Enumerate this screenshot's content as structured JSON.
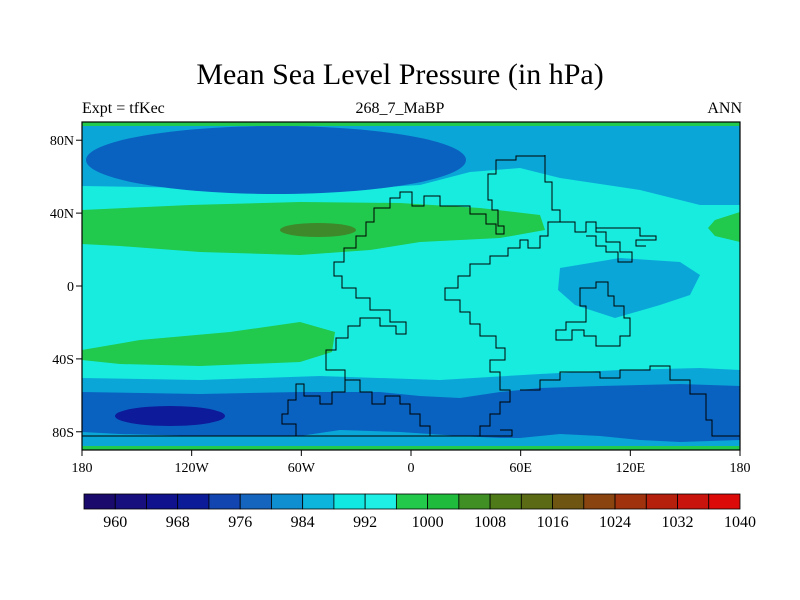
{
  "title": "Mean Sea Level Pressure (in hPa)",
  "left_label": "Expt = tfKec",
  "center_label": "268_7_MaBP",
  "right_label": "ANN",
  "map": {
    "lon_ticks": [
      "180",
      "120W",
      "60W",
      "0",
      "60E",
      "120E",
      "180"
    ],
    "lat_ticks": [
      "80N",
      "40N",
      "0",
      "40S",
      "80S"
    ],
    "lat_values": [
      80,
      40,
      0,
      -40,
      -80
    ],
    "lon_range": [
      -180,
      180
    ],
    "lat_range": [
      -90,
      90
    ]
  },
  "colorbar": {
    "labels": [
      "960",
      "968",
      "976",
      "984",
      "992",
      "1000",
      "1008",
      "1016",
      "1024",
      "1032",
      "1040"
    ],
    "colors": [
      "#1a0a6b",
      "#170f7d",
      "#0f128c",
      "#0c1c99",
      "#1345b0",
      "#1565bf",
      "#0f8fd0",
      "#0bb5dc",
      "#12e8e2",
      "#1ef0e6",
      "#22c94a",
      "#1fbb3c",
      "#3f8f25",
      "#4f7a18",
      "#5b6a14",
      "#6e5612",
      "#8a4410",
      "#a0320e",
      "#b5200c",
      "#c8140c",
      "#dd0a0a"
    ]
  },
  "colors": {
    "lev_984": "#0a62c0",
    "lev_992": "#0ba6d8",
    "lev_1000": "#18ecdf",
    "lev_1008": "#21c94c",
    "lev_1016": "#3e8a2a",
    "lev_976": "#0d1a9a"
  }
}
